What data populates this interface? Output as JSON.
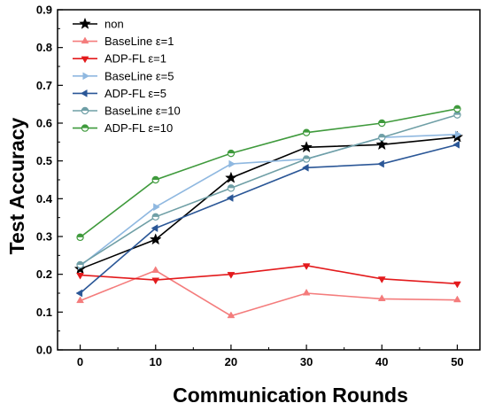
{
  "chart_data": {
    "type": "line",
    "title": "",
    "xlabel": "Communication Rounds",
    "ylabel": "Test Accuracy",
    "x": [
      0,
      10,
      20,
      30,
      40,
      50
    ],
    "xlim": [
      -3,
      53
    ],
    "ylim": [
      0.0,
      0.9
    ],
    "xticks": [
      "0",
      "10",
      "20",
      "30",
      "40",
      "50"
    ],
    "yticks": [
      "0.0",
      "0.1",
      "0.2",
      "0.3",
      "0.4",
      "0.5",
      "0.6",
      "0.7",
      "0.8",
      "0.9"
    ],
    "grid": false,
    "legend_position": "top-left",
    "series": [
      {
        "name": "non",
        "color": "#000000",
        "marker": "star",
        "values": [
          0.214,
          0.292,
          0.455,
          0.536,
          0.543,
          0.563
        ]
      },
      {
        "name": "BaseLine ε=1",
        "color": "#f47c7c",
        "marker": "triangle-up",
        "values": [
          0.13,
          0.21,
          0.09,
          0.15,
          0.135,
          0.132
        ]
      },
      {
        "name": "ADP-FL ε=1",
        "color": "#e31a1c",
        "marker": "triangle-down",
        "values": [
          0.198,
          0.185,
          0.2,
          0.223,
          0.188,
          0.175
        ]
      },
      {
        "name": "BaseLine ε=5",
        "color": "#8fb8e0",
        "marker": "triangle-right",
        "values": [
          0.222,
          0.378,
          0.492,
          0.505,
          0.562,
          0.57
        ]
      },
      {
        "name": "ADP-FL ε=5",
        "color": "#2b5797",
        "marker": "triangle-left",
        "values": [
          0.15,
          0.322,
          0.402,
          0.482,
          0.492,
          0.543
        ]
      },
      {
        "name": "BaseLine ε=10",
        "color": "#6f9fa6",
        "marker": "half-circle",
        "values": [
          0.225,
          0.352,
          0.428,
          0.505,
          0.562,
          0.622
        ]
      },
      {
        "name": "ADP-FL ε=10",
        "color": "#3f9a3c",
        "marker": "half-circle",
        "values": [
          0.298,
          0.45,
          0.52,
          0.575,
          0.6,
          0.638
        ]
      }
    ]
  }
}
